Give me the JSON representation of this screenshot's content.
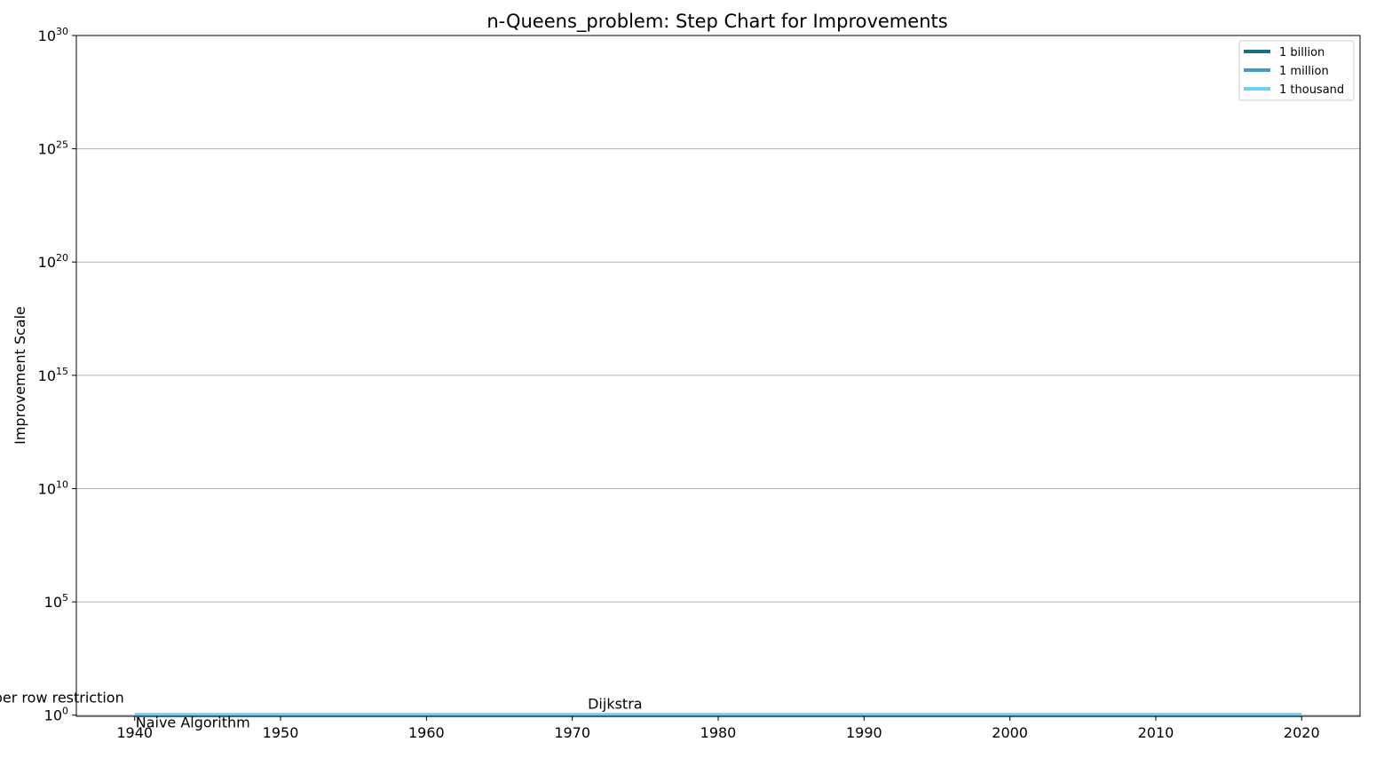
{
  "chart_data": {
    "type": "line",
    "title": "n-Queens_problem: Step Chart for Improvements",
    "xlabel": "",
    "ylabel": "Improvement Scale",
    "x_range": [
      1936,
      2024
    ],
    "y_scale": "log",
    "y_range_exponent": [
      -0.05,
      30
    ],
    "x_ticks": [
      "1940",
      "1950",
      "1960",
      "1970",
      "1980",
      "1990",
      "2000",
      "2010",
      "2020"
    ],
    "y_ticks": [
      {
        "base": "10",
        "exponent": "0"
      },
      {
        "base": "10",
        "exponent": "5"
      },
      {
        "base": "10",
        "exponent": "10"
      },
      {
        "base": "10",
        "exponent": "15"
      },
      {
        "base": "10",
        "exponent": "20"
      },
      {
        "base": "10",
        "exponent": "25"
      },
      {
        "base": "10",
        "exponent": "30"
      }
    ],
    "grid": "horizontal",
    "legend_position": "top-right",
    "legend": [
      {
        "label": "1 billion",
        "color": "#1a6e8c"
      },
      {
        "label": "1 million",
        "color": "#3b9fbd"
      },
      {
        "label": "1 thousand",
        "color": "#6dcff6"
      }
    ],
    "series": [
      {
        "name": "1 thousand",
        "color": "#6dcff6",
        "x": [
          1940,
          2020
        ],
        "y": [
          1,
          1
        ]
      }
    ],
    "annotations": [
      {
        "text": "Naive Algorithm",
        "x": 1940,
        "y": 1,
        "align": "start",
        "placement": "below"
      },
      {
        "text": "One queen per row restriction",
        "x": 1940,
        "y": 1,
        "align": "end",
        "placement": "above"
      },
      {
        "text": "Dijkstra",
        "x": 1971,
        "y": 1,
        "align": "start",
        "placement": "above"
      }
    ]
  }
}
